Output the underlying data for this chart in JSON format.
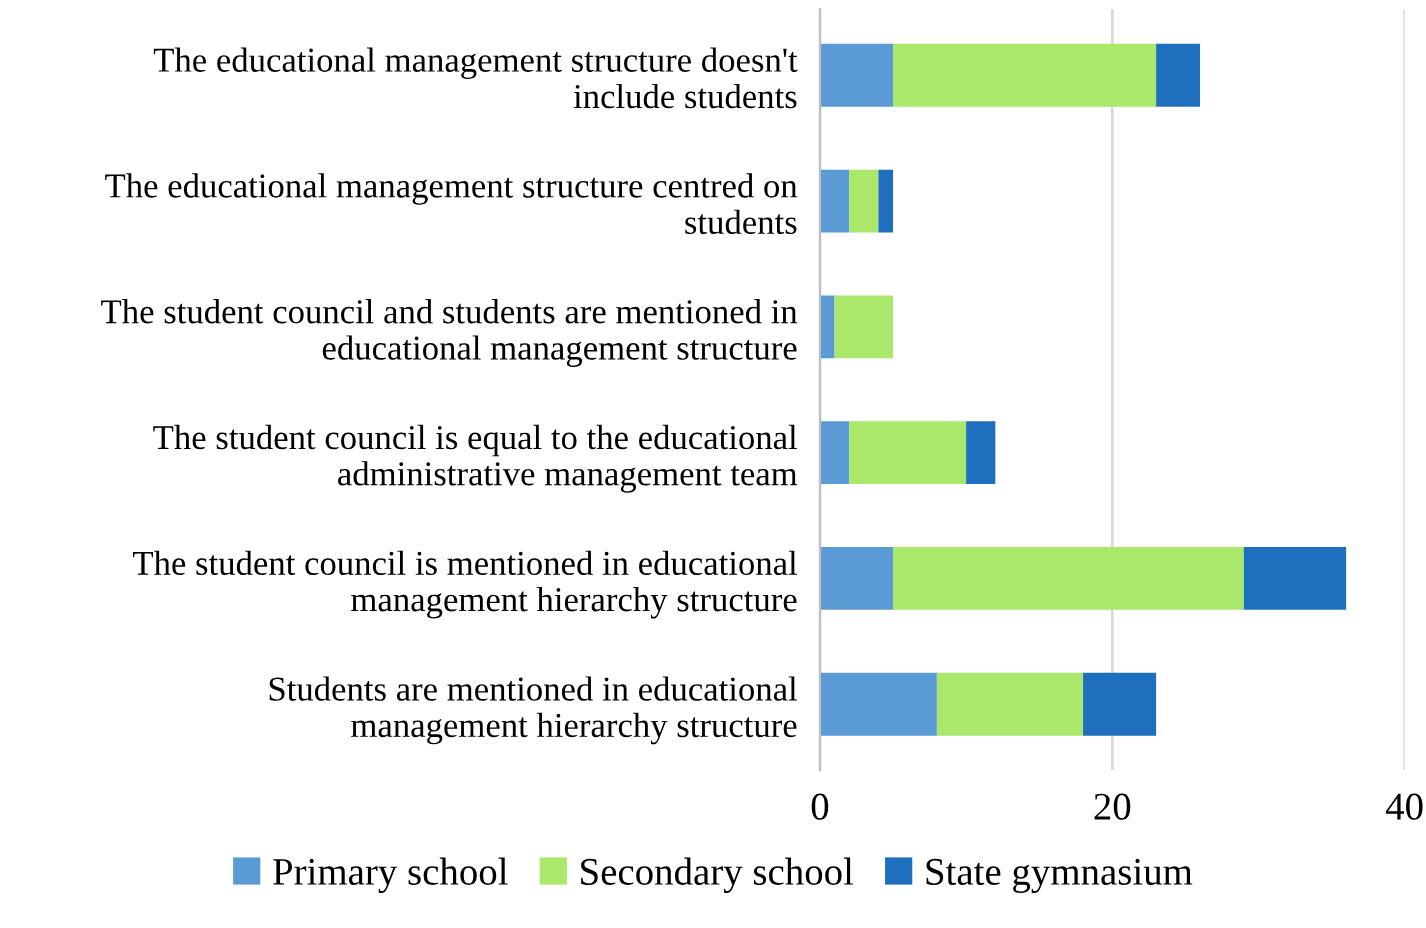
{
  "chart_data": {
    "type": "bar",
    "orientation": "horizontal",
    "stacked": true,
    "categories": [
      "The educational management structure doesn't\ninclude students",
      "The educational management structure centred on\nstudents",
      "The student council and students are mentioned in\neducational management structure",
      "The student council is equal to the educational\nadministrative management team",
      "The student council is mentioned in educational\nmanagement hierarchy structure",
      "Students are mentioned in educational\nmanagement hierarchy structure"
    ],
    "series": [
      {
        "name": "Primary school",
        "color": "#5b9bd5",
        "values": [
          5,
          2,
          1,
          2,
          5,
          8
        ]
      },
      {
        "name": "Secondary school",
        "color": "#a9e86a",
        "values": [
          18,
          2,
          4,
          8,
          24,
          10
        ]
      },
      {
        "name": "State gymnasium",
        "color": "#1f6fbf",
        "values": [
          3,
          1,
          0,
          2,
          7,
          5
        ]
      }
    ],
    "xlim": [
      0,
      40
    ],
    "xticks": [
      0,
      20,
      40
    ],
    "grid": "x",
    "legend": "bottom"
  }
}
